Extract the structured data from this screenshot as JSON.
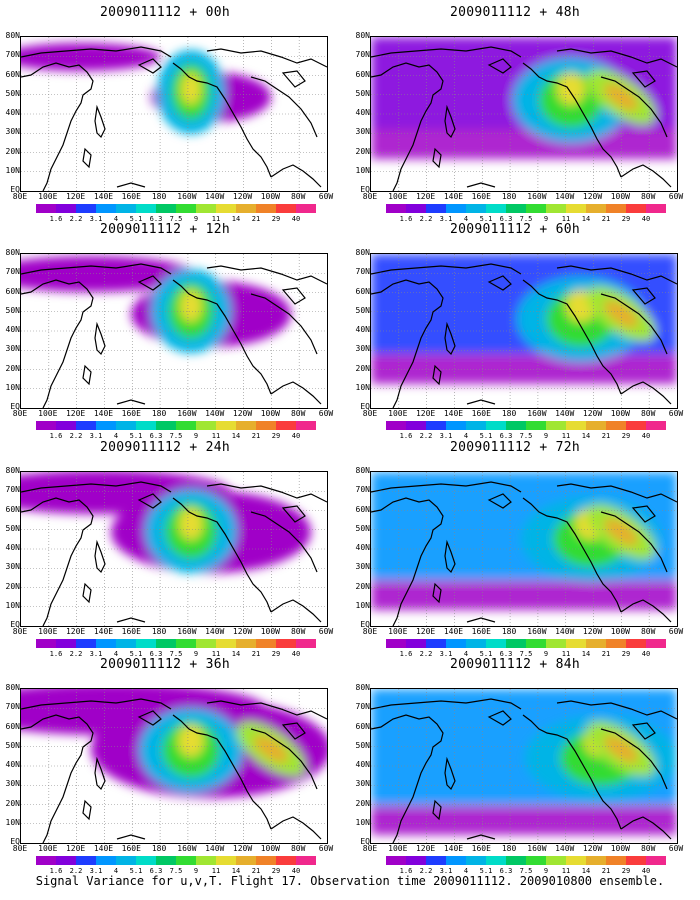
{
  "panels": [
    {
      "title": "2009011112 + 00h",
      "intensity": 0
    },
    {
      "title": "2009011112 + 12h",
      "intensity": 1
    },
    {
      "title": "2009011112 + 24h",
      "intensity": 2
    },
    {
      "title": "2009011112 + 36h",
      "intensity": 3
    },
    {
      "title": "2009011112 + 48h",
      "intensity": 4
    },
    {
      "title": "2009011112 + 60h",
      "intensity": 5
    },
    {
      "title": "2009011112 + 72h",
      "intensity": 6
    },
    {
      "title": "2009011112 + 84h",
      "intensity": 7
    }
  ],
  "lat_labels": [
    "80N",
    "70N",
    "60N",
    "50N",
    "40N",
    "30N",
    "20N",
    "10N",
    "EQ"
  ],
  "lon_labels": [
    "80E",
    "100E",
    "120E",
    "140E",
    "160E",
    "180",
    "160W",
    "140W",
    "120W",
    "100W",
    "80W",
    "60W"
  ],
  "colorbar": {
    "labels": [
      "1.6",
      "2.2",
      "3.1",
      "4",
      "5.1",
      "6.3",
      "7.5",
      "9",
      "11",
      "14",
      "21",
      "29",
      "40"
    ],
    "colors": [
      "#a000c8",
      "#8200dc",
      "#1e3cff",
      "#0096ff",
      "#00b4e6",
      "#00dcc8",
      "#00c864",
      "#32dc32",
      "#a0e632",
      "#e6dc32",
      "#e6af2d",
      "#f08228",
      "#fa3c3c",
      "#f0288c"
    ]
  },
  "caption": "Signal Variance for u,v,T. Flight 17. Observation time 2009011112. 2009010800 ensemble."
}
